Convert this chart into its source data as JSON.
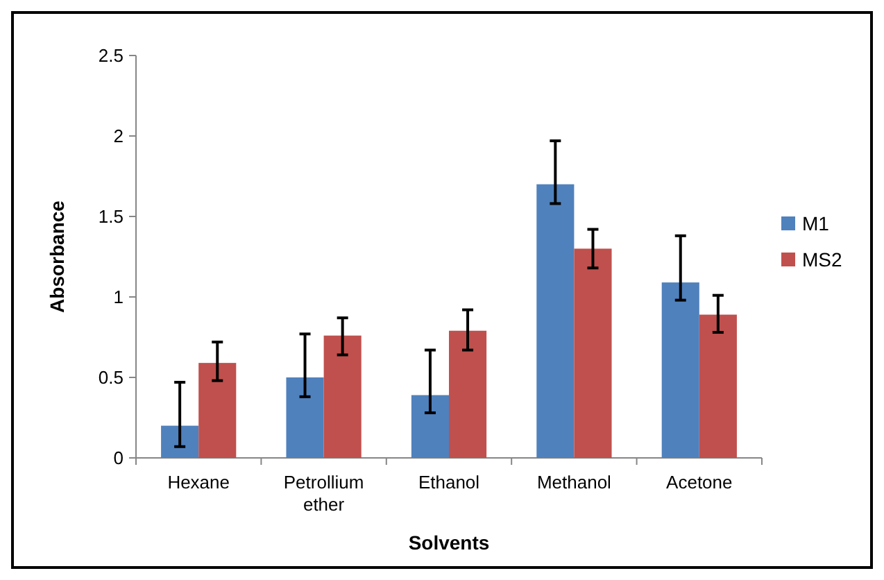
{
  "chart_data": {
    "type": "bar",
    "xlabel": "Solvents",
    "ylabel": "Absorbance",
    "categories": [
      "Hexane",
      "Petrollium ether",
      "Ethanol",
      "Methanol",
      "Acetone"
    ],
    "series": [
      {
        "name": "M1",
        "color": "#4f81bd",
        "values": [
          0.2,
          0.5,
          0.39,
          1.7,
          1.09
        ],
        "errors": [
          [
            0.07,
            0.47
          ],
          [
            0.38,
            0.77
          ],
          [
            0.28,
            0.67
          ],
          [
            1.58,
            1.97
          ],
          [
            0.98,
            1.38
          ]
        ]
      },
      {
        "name": "MS2",
        "color": "#c0504d",
        "values": [
          0.59,
          0.76,
          0.79,
          1.3,
          0.89
        ],
        "errors": [
          [
            0.48,
            0.72
          ],
          [
            0.64,
            0.87
          ],
          [
            0.67,
            0.92
          ],
          [
            1.18,
            1.42
          ],
          [
            0.78,
            1.01
          ]
        ]
      }
    ],
    "ylim": [
      0,
      2.5
    ],
    "yticks": [
      0,
      0.5,
      1,
      1.5,
      2,
      2.5
    ],
    "grid": false,
    "legend": "right"
  }
}
